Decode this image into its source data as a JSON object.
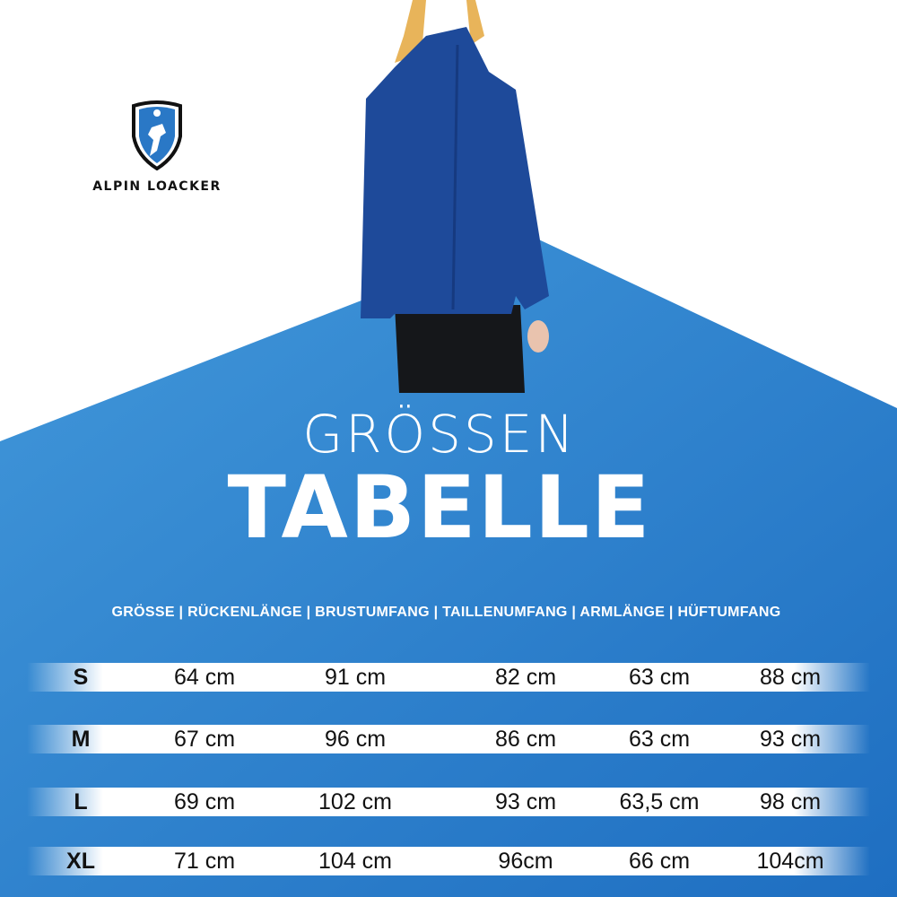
{
  "brand": {
    "name": "ALPIN LOACKER"
  },
  "title": {
    "line1": "GRÖSSEN",
    "line2": "TABELLE"
  },
  "table": {
    "header": "GRÖSSE | RÜCKENLÄNGE | BRUSTUMFANG | TAILLENUMFANG | ARMLÄNGE | HÜFTUMFANG",
    "rows": [
      [
        "S",
        "64 cm",
        "91 cm",
        "82 cm",
        "63 cm",
        "88 cm"
      ],
      [
        "M",
        "67 cm",
        "96 cm",
        "86 cm",
        "63 cm",
        "93 cm"
      ],
      [
        "L",
        "69 cm",
        "102 cm",
        "93 cm",
        "63,5 cm",
        "98 cm"
      ],
      [
        "XL",
        "71 cm",
        "104 cm",
        "96cm",
        "66 cm",
        "104cm"
      ]
    ]
  },
  "colors": {
    "blue_light": "#3d93d8",
    "blue_dark": "#1f6fc2",
    "jacket": "#1e4a9a"
  }
}
